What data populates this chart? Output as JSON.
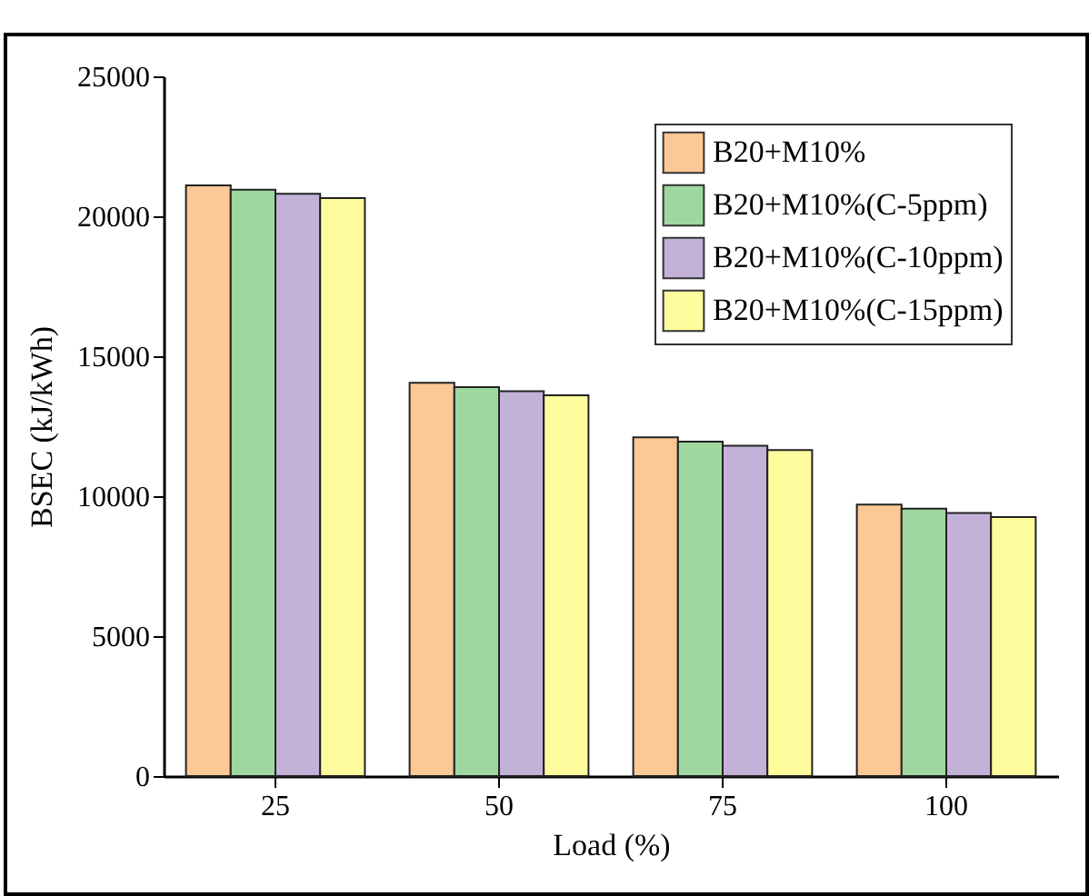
{
  "chart_data": {
    "type": "bar",
    "xlabel": "Load (%)",
    "ylabel": "BSEC (kJ/kWh)",
    "categories": [
      "25",
      "50",
      "75",
      "100"
    ],
    "series": [
      {
        "name": "B20+M10%",
        "color": "#fcc896",
        "values": [
          21100,
          14050,
          12100,
          9700
        ]
      },
      {
        "name": "B20+M10%(C-5ppm)",
        "color": "#9fd89e",
        "values": [
          20950,
          13900,
          11950,
          9550
        ]
      },
      {
        "name": "B20+M10%(C-10ppm)",
        "color": "#c3b1d8",
        "values": [
          20800,
          13750,
          11800,
          9400
        ]
      },
      {
        "name": "B20+M10%(C-15ppm)",
        "color": "#fffc9e",
        "values": [
          20650,
          13600,
          11650,
          9250
        ]
      }
    ],
    "ylim": [
      0,
      25000
    ],
    "yticks": [
      0,
      5000,
      10000,
      15000,
      20000,
      25000
    ],
    "grid": false,
    "legend": "top right"
  }
}
